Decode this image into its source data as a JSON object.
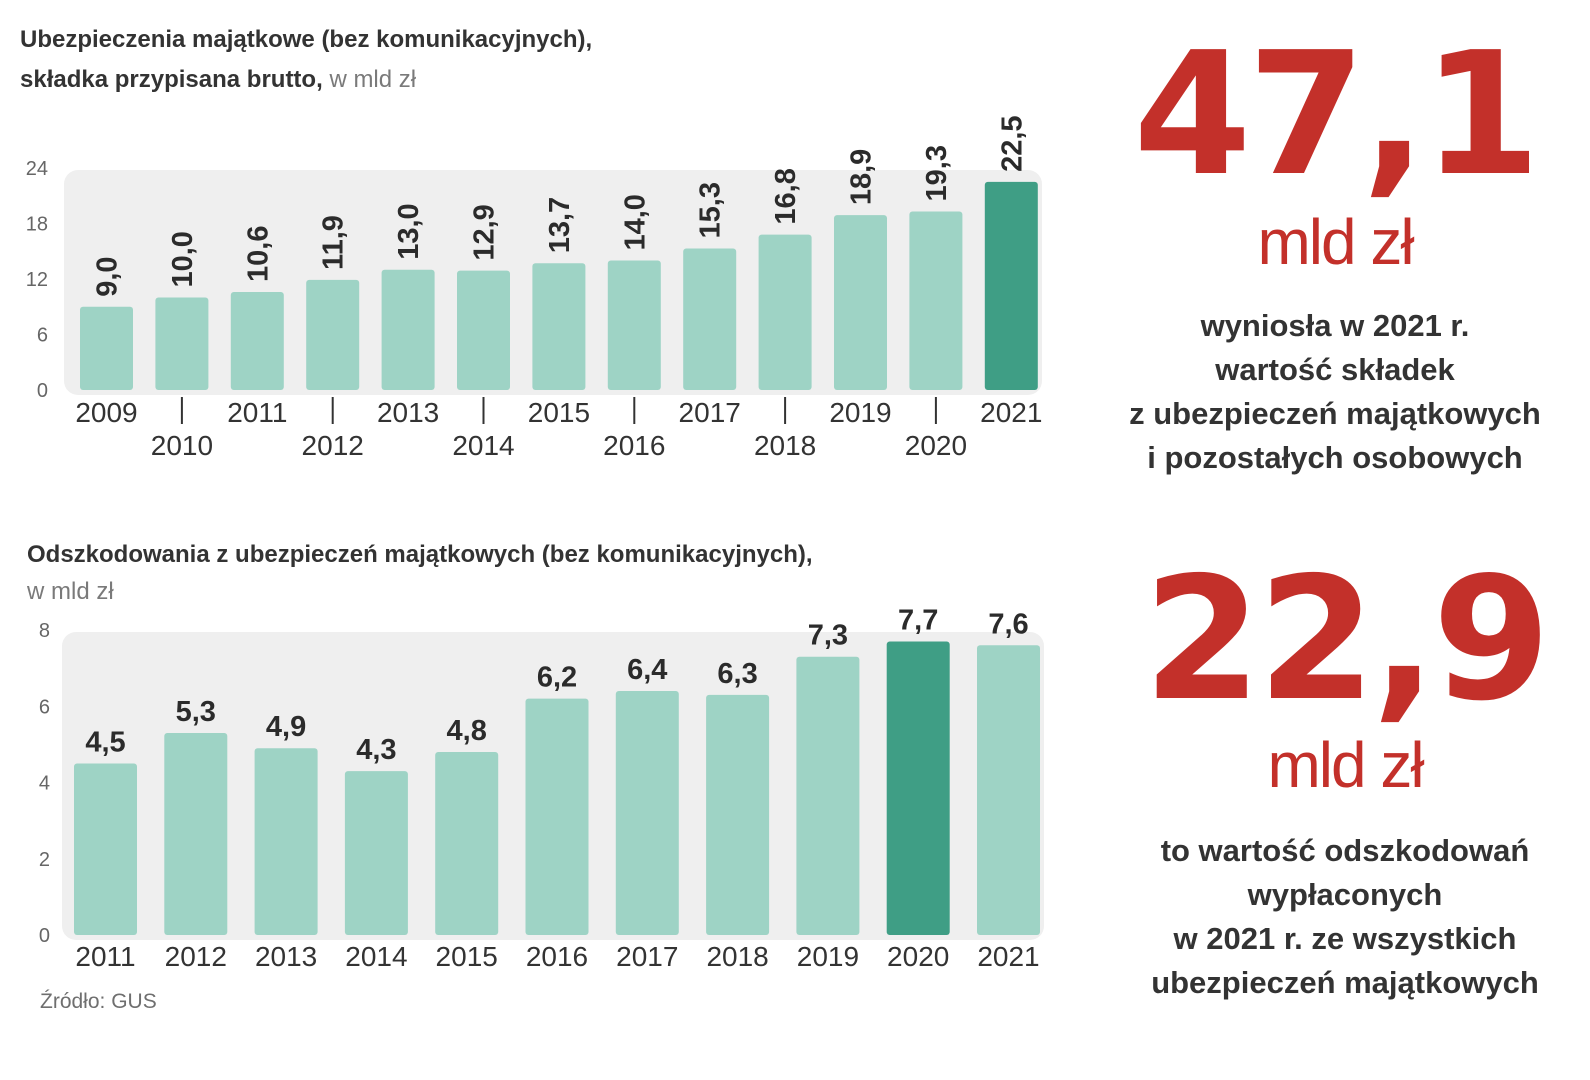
{
  "chart_data": [
    {
      "type": "bar",
      "title": "Ubezpieczenia majątkowe (bez komunikacyjnych),",
      "subtitle": "składka przypisana brutto,",
      "unit": "w mld zł",
      "categories": [
        "2009",
        "2010",
        "2011",
        "2012",
        "2013",
        "2014",
        "2015",
        "2016",
        "2017",
        "2018",
        "2019",
        "2020",
        "2021"
      ],
      "values": [
        9.0,
        10.0,
        10.6,
        11.9,
        13.0,
        12.9,
        13.7,
        14.0,
        15.3,
        16.8,
        18.9,
        19.3,
        22.5
      ],
      "value_labels": [
        "9,0",
        "10,0",
        "10,6",
        "11,9",
        "13,0",
        "12,9",
        "13,7",
        "14,0",
        "15,3",
        "16,8",
        "18,9",
        "19,3",
        "22,5"
      ],
      "highlight": "2021",
      "ylim": [
        0,
        24
      ],
      "yticks": [
        "0",
        "6",
        "12",
        "18",
        "24"
      ],
      "ytick_values": [
        0,
        6,
        12,
        18,
        24
      ],
      "xlabel": "",
      "ylabel": "",
      "grid": false,
      "colors": {
        "bar": "#9ed3c5",
        "highlight": "#3f9e85",
        "panel": "#efefef"
      }
    },
    {
      "type": "bar",
      "title": "Odszkodowania z ubezpieczeń majątkowych (bez komunikacyjnych),",
      "unit": "w mld zł",
      "categories": [
        "2011",
        "2012",
        "2013",
        "2014",
        "2015",
        "2016",
        "2017",
        "2018",
        "2019",
        "2020",
        "2021"
      ],
      "values": [
        4.5,
        5.3,
        4.9,
        4.3,
        4.8,
        6.2,
        6.4,
        6.3,
        7.3,
        7.7,
        7.6
      ],
      "value_labels": [
        "4,5",
        "5,3",
        "4,9",
        "4,3",
        "4,8",
        "6,2",
        "6,4",
        "6,3",
        "7,3",
        "7,7",
        "7,6"
      ],
      "highlight": "2020",
      "ylim": [
        0,
        8
      ],
      "yticks": [
        "0",
        "2",
        "4",
        "6",
        "8"
      ],
      "ytick_values": [
        0,
        2,
        4,
        6,
        8
      ],
      "xlabel": "",
      "ylabel": "",
      "grid": false,
      "colors": {
        "bar": "#9ed3c5",
        "highlight": "#3f9e85",
        "panel": "#efefef"
      }
    }
  ],
  "source": "Źródło: GUS",
  "stat1": {
    "value": "47,1",
    "unit": "mld zł",
    "desc": [
      "wyniosła w 2021 r.",
      "wartość składek",
      "z ubezpieczeń majątkowych",
      "i pozostałych osobowych"
    ]
  },
  "stat2": {
    "value": "22,9",
    "unit": "mld zł",
    "desc": [
      "to wartość odszkodowań",
      "wypłaconych",
      "w 2021 r. ze wszystkich",
      "ubezpieczeń majątkowych"
    ]
  },
  "colors": {
    "accent_red": "#c3302a"
  }
}
